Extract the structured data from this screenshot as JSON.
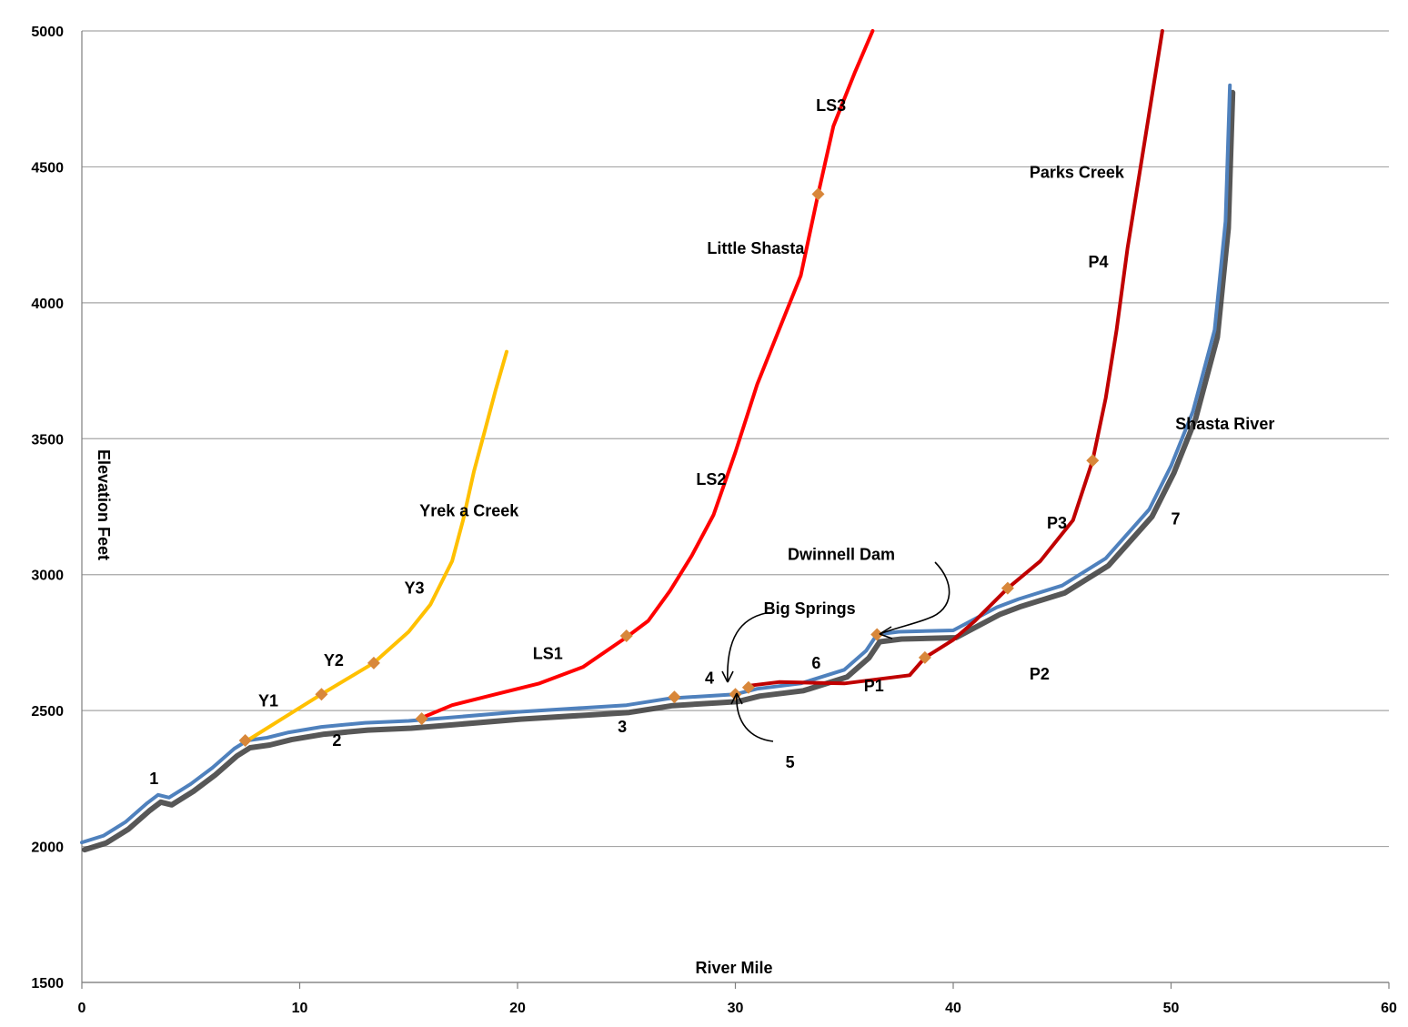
{
  "chart_data": {
    "type": "line",
    "xlabel": "River Mile",
    "ylabel": "Elevation Feet",
    "xlim": [
      0,
      60
    ],
    "ylim": [
      1500,
      5000
    ],
    "xticks": [
      0,
      10,
      20,
      30,
      40,
      50,
      60
    ],
    "yticks": [
      1500,
      2000,
      2500,
      3000,
      3500,
      4000,
      4500,
      5000
    ],
    "grid": "horizontal",
    "colors": {
      "shasta": "#4F81BD",
      "shadow": "#3A3A3A",
      "yreka": "#FFC000",
      "little_shasta": "#FF0000",
      "parks": "#C00000",
      "marker": "#D8873A",
      "grid": "#A6A6A6"
    },
    "series": [
      {
        "key": "shasta",
        "points": [
          [
            0,
            2015
          ],
          [
            1,
            2040
          ],
          [
            2,
            2090
          ],
          [
            3,
            2160
          ],
          [
            3.5,
            2190
          ],
          [
            4,
            2180
          ],
          [
            5,
            2230
          ],
          [
            6,
            2290
          ],
          [
            7,
            2360
          ],
          [
            7.6,
            2390
          ],
          [
            8.5,
            2400
          ],
          [
            9.5,
            2420
          ],
          [
            11,
            2440
          ],
          [
            13,
            2455
          ],
          [
            15,
            2462
          ],
          [
            17,
            2475
          ],
          [
            20,
            2495
          ],
          [
            23,
            2510
          ],
          [
            25,
            2520
          ],
          [
            27,
            2545
          ],
          [
            29,
            2555
          ],
          [
            30,
            2560
          ],
          [
            31,
            2580
          ],
          [
            33,
            2600
          ],
          [
            35,
            2650
          ],
          [
            36,
            2720
          ],
          [
            36.5,
            2780
          ],
          [
            37.5,
            2790
          ],
          [
            40,
            2795
          ],
          [
            42,
            2880
          ],
          [
            43,
            2910
          ],
          [
            45,
            2960
          ],
          [
            47,
            3060
          ],
          [
            49,
            3240
          ],
          [
            50,
            3400
          ],
          [
            51,
            3600
          ],
          [
            52,
            3900
          ],
          [
            52.5,
            4300
          ],
          [
            52.7,
            4800
          ]
        ]
      },
      {
        "key": "yreka",
        "name": "Yrek a Creek",
        "points": [
          [
            7.6,
            2390
          ],
          [
            9,
            2460
          ],
          [
            11,
            2560
          ],
          [
            13.4,
            2675
          ],
          [
            15,
            2790
          ],
          [
            16,
            2890
          ],
          [
            17,
            3050
          ],
          [
            17.5,
            3200
          ],
          [
            18,
            3380
          ],
          [
            18.5,
            3530
          ],
          [
            19,
            3680
          ],
          [
            19.5,
            3820
          ]
        ]
      },
      {
        "key": "little_shasta",
        "name": "Little Shasta",
        "points": [
          [
            15.5,
            2470
          ],
          [
            17,
            2520
          ],
          [
            19,
            2560
          ],
          [
            21,
            2600
          ],
          [
            23,
            2660
          ],
          [
            25,
            2770
          ],
          [
            26,
            2830
          ],
          [
            27,
            2940
          ],
          [
            28,
            3070
          ],
          [
            29,
            3220
          ],
          [
            30,
            3450
          ],
          [
            31,
            3700
          ],
          [
            32,
            3900
          ],
          [
            33,
            4100
          ],
          [
            33.8,
            4400
          ],
          [
            34.5,
            4650
          ],
          [
            35.5,
            4850
          ],
          [
            36.3,
            5000
          ]
        ]
      },
      {
        "key": "parks",
        "name": "Parks Creek",
        "points": [
          [
            30.5,
            2590
          ],
          [
            32,
            2605
          ],
          [
            35,
            2600
          ],
          [
            37,
            2620
          ],
          [
            38,
            2630
          ],
          [
            38.7,
            2695
          ],
          [
            40,
            2760
          ],
          [
            41,
            2830
          ],
          [
            42.5,
            2950
          ],
          [
            44,
            3050
          ],
          [
            45.5,
            3200
          ],
          [
            46.4,
            3420
          ],
          [
            47,
            3650
          ],
          [
            47.5,
            3900
          ],
          [
            48,
            4200
          ],
          [
            48.8,
            4600
          ],
          [
            49.6,
            5000
          ]
        ]
      }
    ],
    "markers": [
      [
        7.5,
        2390
      ],
      [
        11,
        2560
      ],
      [
        13.4,
        2675
      ],
      [
        15.6,
        2470
      ],
      [
        25,
        2775
      ],
      [
        27.2,
        2550
      ],
      [
        30,
        2560
      ],
      [
        30.6,
        2585
      ],
      [
        33.8,
        4400
      ],
      [
        36.5,
        2780
      ],
      [
        38.7,
        2695
      ],
      [
        42.5,
        2950
      ],
      [
        46.4,
        3420
      ]
    ],
    "series_labels": [
      {
        "text": "Yrek a Creek",
        "x": 15.5,
        "y": 3215
      },
      {
        "text": "Little Shasta",
        "x": 28.7,
        "y": 4180
      },
      {
        "text": "Parks Creek",
        "x": 43.5,
        "y": 4460
      },
      {
        "text": "Shasta River",
        "x": 50.2,
        "y": 3535
      },
      {
        "text": "Dwinnell Dam",
        "x": 32.4,
        "y": 3055
      },
      {
        "text": "Big Springs",
        "x": 31.3,
        "y": 2855
      }
    ],
    "reach_labels": [
      {
        "text": "1",
        "x": 3.1,
        "y": 2230
      },
      {
        "text": "2",
        "x": 11.5,
        "y": 2370
      },
      {
        "text": "3",
        "x": 24.6,
        "y": 2420
      },
      {
        "text": "4",
        "x": 28.6,
        "y": 2600
      },
      {
        "text": "5",
        "x": 32.3,
        "y": 2290
      },
      {
        "text": "6",
        "x": 33.5,
        "y": 2655
      },
      {
        "text": "7",
        "x": 50.0,
        "y": 3185
      },
      {
        "text": "Y1",
        "x": 8.1,
        "y": 2515
      },
      {
        "text": "Y2",
        "x": 11.1,
        "y": 2665
      },
      {
        "text": "Y3",
        "x": 14.8,
        "y": 2930
      },
      {
        "text": "LS1",
        "x": 20.7,
        "y": 2690
      },
      {
        "text": "LS2",
        "x": 28.2,
        "y": 3330
      },
      {
        "text": "LS3",
        "x": 33.7,
        "y": 4705
      },
      {
        "text": "P1",
        "x": 35.9,
        "y": 2570
      },
      {
        "text": "P2",
        "x": 43.5,
        "y": 2615
      },
      {
        "text": "P3",
        "x": 44.3,
        "y": 3170
      },
      {
        "text": "P4",
        "x": 46.2,
        "y": 4130
      }
    ]
  }
}
